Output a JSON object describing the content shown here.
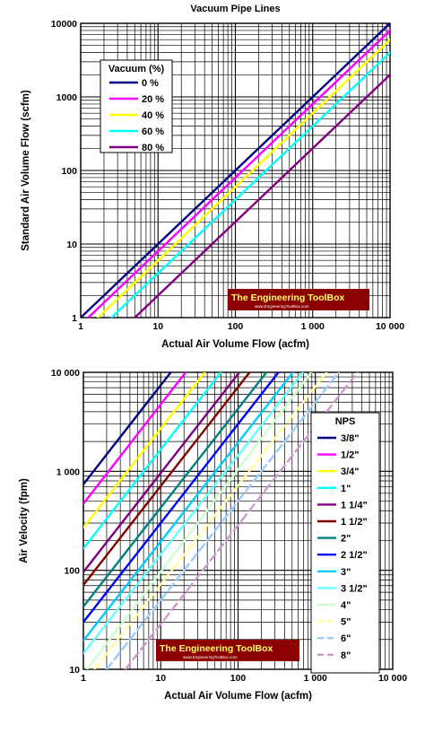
{
  "chart_data": [
    {
      "type": "line",
      "title": "Vacuum Pipe Lines",
      "xlabel": "Actual Air Volume Flow (acfm)",
      "ylabel": "Standard Air Volume Flow (scfm)",
      "xscale": "log",
      "yscale": "log",
      "xlim": [
        1,
        10000
      ],
      "ylim": [
        1,
        10000
      ],
      "xticks": [
        1,
        10,
        100,
        1000,
        10000
      ],
      "xtick_labels": [
        "1",
        "10",
        "100",
        "1 000",
        "10 000"
      ],
      "yticks": [
        1,
        10,
        100,
        1000,
        10000
      ],
      "ytick_labels": [
        "1",
        "10",
        "100",
        "1000",
        "10000"
      ],
      "grid": true,
      "legend_title": "Vacuum (%)",
      "legend_position": "top-left",
      "watermark": "The Engineering ToolBox",
      "watermark_url": "www.EngineeringToolBox.com",
      "series": [
        {
          "name": "0 %",
          "color": "#000080",
          "x": [
            1,
            10000
          ],
          "y": [
            1,
            10000
          ]
        },
        {
          "name": "20 %",
          "color": "#ff00ff",
          "x": [
            1.25,
            10000
          ],
          "y": [
            1,
            8000
          ]
        },
        {
          "name": "40 %",
          "color": "#ffff00",
          "x": [
            1.67,
            10000
          ],
          "y": [
            1,
            6000
          ]
        },
        {
          "name": "60 %",
          "color": "#00ffff",
          "x": [
            2.5,
            10000
          ],
          "y": [
            1,
            4000
          ]
        },
        {
          "name": "80 %",
          "color": "#800080",
          "x": [
            5,
            10000
          ],
          "y": [
            1,
            2000
          ]
        }
      ]
    },
    {
      "type": "line",
      "title": "",
      "xlabel": "Actual Air Volume Flow (acfm)",
      "ylabel": "Air Velocity (fpm)",
      "xscale": "log",
      "yscale": "log",
      "xlim": [
        1,
        10000
      ],
      "ylim": [
        10,
        10000
      ],
      "xticks": [
        1,
        10,
        100,
        1000,
        10000
      ],
      "xtick_labels": [
        "1",
        "10",
        "100",
        "1 000",
        "10 000"
      ],
      "yticks": [
        10,
        100,
        1000,
        10000
      ],
      "ytick_labels": [
        "10",
        "100",
        "1 000",
        "10 000"
      ],
      "grid": true,
      "legend_title": "NPS",
      "legend_position": "right",
      "watermark": "The Engineering ToolBox",
      "watermark_url": "www.EngineeringToolBox.com",
      "series": [
        {
          "name": "3/8\"",
          "color": "#000080",
          "dash": false,
          "x": [
            1,
            13.5
          ],
          "y": [
            740,
            10000
          ]
        },
        {
          "name": "1/2\"",
          "color": "#ff00ff",
          "dash": false,
          "x": [
            1,
            21
          ],
          "y": [
            470,
            10000
          ]
        },
        {
          "name": "3/4\"",
          "color": "#ffff00",
          "dash": false,
          "x": [
            1,
            37
          ],
          "y": [
            270,
            10000
          ]
        },
        {
          "name": "1\"",
          "color": "#00ffff",
          "dash": false,
          "x": [
            1,
            60
          ],
          "y": [
            166,
            10000
          ]
        },
        {
          "name": "1 1/4\"",
          "color": "#800080",
          "dash": false,
          "x": [
            1,
            104
          ],
          "y": [
            96,
            10000
          ]
        },
        {
          "name": "1 1/2\"",
          "color": "#800000",
          "dash": false,
          "x": [
            1,
            141
          ],
          "y": [
            71,
            10000
          ]
        },
        {
          "name": "2\"",
          "color": "#008080",
          "dash": false,
          "x": [
            1,
            233
          ],
          "y": [
            43,
            10000
          ]
        },
        {
          "name": "2 1/2\"",
          "color": "#0000ff",
          "dash": false,
          "x": [
            1,
            333
          ],
          "y": [
            30,
            10000
          ]
        },
        {
          "name": "3\"",
          "color": "#00ccff",
          "dash": false,
          "x": [
            1,
            513
          ],
          "y": [
            19.5,
            10000
          ]
        },
        {
          "name": "3 1/2\"",
          "color": "#66ffff",
          "dash": false,
          "x": [
            1,
            690
          ],
          "y": [
            14.5,
            10000
          ]
        },
        {
          "name": "4\"",
          "color": "#ccffcc",
          "dash": false,
          "x": [
            1.12,
            885
          ],
          "y": [
            10,
            10000
          ]
        },
        {
          "name": "5\"",
          "color": "#ffff99",
          "dash": true,
          "x": [
            1.39,
            1390
          ],
          "y": [
            10,
            10000
          ]
        },
        {
          "name": "6\"",
          "color": "#99ccff",
          "dash": true,
          "x": [
            2.0,
            2000
          ],
          "y": [
            10,
            10000
          ]
        },
        {
          "name": "8\"",
          "color": "#cc99cc",
          "dash": true,
          "x": [
            3.5,
            3500
          ],
          "y": [
            10,
            10000
          ]
        }
      ]
    }
  ]
}
